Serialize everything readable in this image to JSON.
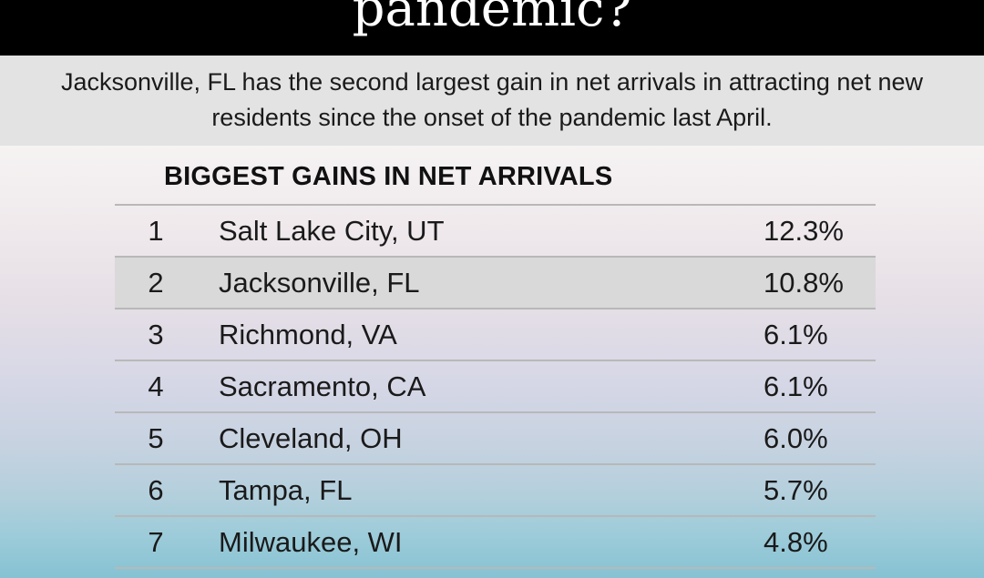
{
  "header": {
    "title": "pandemic?"
  },
  "intro": {
    "text": "Jacksonville, FL has the second largest gain in net arrivals in attracting net new residents since the onset of the pandemic last April."
  },
  "colors": {
    "header_background": "#000000",
    "intro_band": "#e3e3e3",
    "highlight_row": "#d9d9d9"
  },
  "chart_data": {
    "type": "table",
    "title": "BIGGEST GAINS IN NET ARRIVALS",
    "highlight_rank": 2,
    "rows": [
      {
        "rank": "1",
        "city": "Salt Lake City, UT",
        "value": 12.3,
        "value_label": "12.3%"
      },
      {
        "rank": "2",
        "city": "Jacksonville, FL",
        "value": 10.8,
        "value_label": "10.8%"
      },
      {
        "rank": "3",
        "city": "Richmond, VA",
        "value": 6.1,
        "value_label": "6.1%"
      },
      {
        "rank": "4",
        "city": "Sacramento, CA",
        "value": 6.1,
        "value_label": "6.1%"
      },
      {
        "rank": "5",
        "city": "Cleveland, OH",
        "value": 6.0,
        "value_label": "6.0%"
      },
      {
        "rank": "6",
        "city": "Tampa, FL",
        "value": 5.7,
        "value_label": "5.7%"
      },
      {
        "rank": "7",
        "city": "Milwaukee, WI",
        "value": 4.8,
        "value_label": "4.8%"
      }
    ]
  }
}
